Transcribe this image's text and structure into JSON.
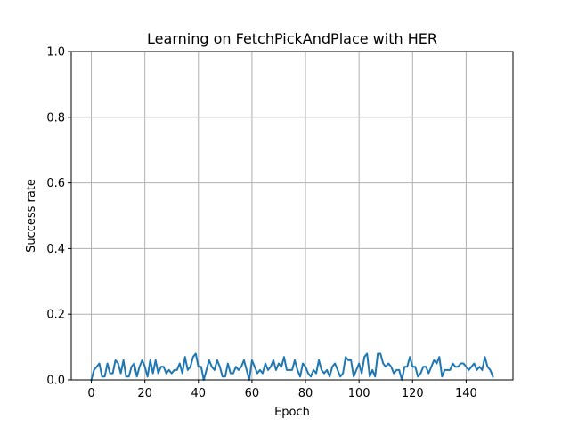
{
  "chart_data": {
    "type": "line",
    "title": "Learning on FetchPickAndPlace with HER",
    "xlabel": "Epoch",
    "ylabel": "Success rate",
    "xlim": [
      -7.5,
      157.5
    ],
    "ylim": [
      0.0,
      1.0
    ],
    "xticks": [
      0,
      20,
      40,
      60,
      80,
      100,
      120,
      140
    ],
    "yticks": [
      0.0,
      0.2,
      0.4,
      0.6,
      0.8,
      1.0
    ],
    "xtick_labels": [
      "0",
      "20",
      "40",
      "60",
      "80",
      "100",
      "120",
      "140"
    ],
    "ytick_labels": [
      "0.0",
      "0.2",
      "0.4",
      "0.6",
      "0.8",
      "1.0"
    ],
    "grid": true,
    "series": [
      {
        "color": "#1f77b4",
        "x": [
          0,
          1,
          2,
          3,
          4,
          5,
          6,
          7,
          8,
          9,
          10,
          11,
          12,
          13,
          14,
          15,
          16,
          17,
          18,
          19,
          20,
          21,
          22,
          23,
          24,
          25,
          26,
          27,
          28,
          29,
          30,
          31,
          32,
          33,
          34,
          35,
          36,
          37,
          38,
          39,
          40,
          41,
          42,
          43,
          44,
          45,
          46,
          47,
          48,
          49,
          50,
          51,
          52,
          53,
          54,
          55,
          56,
          57,
          58,
          59,
          60,
          61,
          62,
          63,
          64,
          65,
          66,
          67,
          68,
          69,
          70,
          71,
          72,
          73,
          74,
          75,
          76,
          77,
          78,
          79,
          80,
          81,
          82,
          83,
          84,
          85,
          86,
          87,
          88,
          89,
          90,
          91,
          92,
          93,
          94,
          95,
          96,
          97,
          98,
          99,
          100,
          101,
          102,
          103,
          104,
          105,
          106,
          107,
          108,
          109,
          110,
          111,
          112,
          113,
          114,
          115,
          116,
          117,
          118,
          119,
          120,
          121,
          122,
          123,
          124,
          125,
          126,
          127,
          128,
          129,
          130,
          131,
          132,
          133,
          134,
          135,
          136,
          137,
          138,
          139,
          140,
          141,
          142,
          143,
          144,
          145,
          146,
          147,
          148,
          149,
          150
        ],
        "values": [
          0.0,
          0.03,
          0.04,
          0.05,
          0.01,
          0.01,
          0.05,
          0.02,
          0.02,
          0.06,
          0.05,
          0.02,
          0.06,
          0.01,
          0.01,
          0.04,
          0.05,
          0.01,
          0.04,
          0.06,
          0.04,
          0.01,
          0.06,
          0.02,
          0.06,
          0.02,
          0.04,
          0.04,
          0.02,
          0.03,
          0.02,
          0.03,
          0.03,
          0.05,
          0.02,
          0.07,
          0.03,
          0.04,
          0.07,
          0.08,
          0.04,
          0.04,
          0.0,
          0.03,
          0.06,
          0.04,
          0.03,
          0.06,
          0.04,
          0.01,
          0.01,
          0.05,
          0.02,
          0.02,
          0.04,
          0.03,
          0.04,
          0.06,
          0.03,
          0.0,
          0.06,
          0.04,
          0.02,
          0.03,
          0.02,
          0.05,
          0.03,
          0.04,
          0.06,
          0.03,
          0.05,
          0.04,
          0.07,
          0.03,
          0.03,
          0.03,
          0.06,
          0.03,
          0.01,
          0.05,
          0.04,
          0.02,
          0.01,
          0.03,
          0.02,
          0.06,
          0.03,
          0.02,
          0.03,
          0.01,
          0.04,
          0.05,
          0.03,
          0.01,
          0.02,
          0.07,
          0.06,
          0.06,
          0.01,
          0.03,
          0.05,
          0.02,
          0.07,
          0.08,
          0.01,
          0.03,
          0.01,
          0.08,
          0.08,
          0.05,
          0.04,
          0.05,
          0.04,
          0.02,
          0.03,
          0.03,
          0.0,
          0.04,
          0.04,
          0.07,
          0.04,
          0.04,
          0.01,
          0.02,
          0.04,
          0.04,
          0.02,
          0.04,
          0.06,
          0.05,
          0.07,
          0.01,
          0.03,
          0.03,
          0.03,
          0.05,
          0.04,
          0.04,
          0.05,
          0.05,
          0.04,
          0.03,
          0.04,
          0.05,
          0.03,
          0.04,
          0.03,
          0.07,
          0.04,
          0.03,
          0.01
        ]
      }
    ]
  }
}
